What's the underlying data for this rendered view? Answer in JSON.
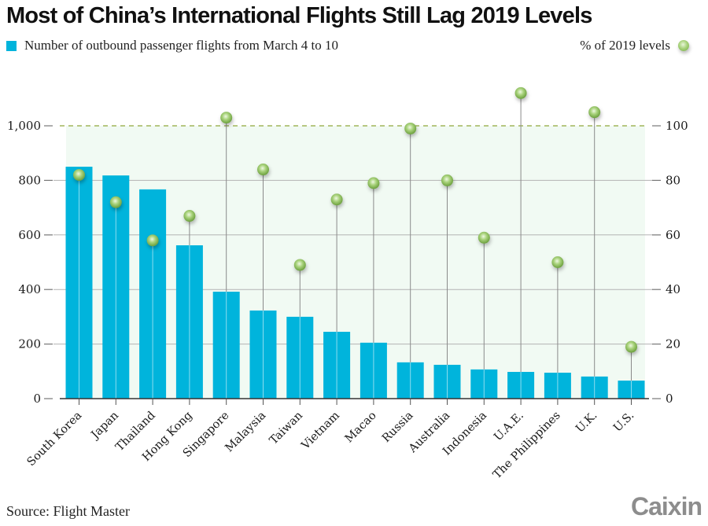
{
  "title": "Most of China’s International Flights Still Lag 2019 Levels",
  "legend": {
    "bars_label": "Number of outbound passenger flights from March 4 to 10",
    "dots_label": "% of 2019 levels"
  },
  "source": "Source: Flight Master",
  "logo": "Caixin",
  "colors": {
    "bar": "#00b4dc",
    "plot_bg": "#f1faf3",
    "dot": "#a9d37c",
    "reference_line": "#8fa83a",
    "grid": "#9a9a9a"
  },
  "chart_data": {
    "type": "bar",
    "title": "Most of China’s International Flights Still Lag 2019 Levels",
    "categories": [
      "South Korea",
      "Japan",
      "Thailand",
      "Hong Kong",
      "Singapore",
      "Malaysia",
      "Taiwan",
      "Vietnam",
      "Macao",
      "Russia",
      "Australia",
      "Indonesia",
      "U.A.E.",
      "The Philippines",
      "U.K.",
      "U.S."
    ],
    "series": [
      {
        "name": "Number of outbound passenger flights from March 4 to 10",
        "type": "bar",
        "axis": "left",
        "values": [
          850,
          818,
          767,
          562,
          392,
          323,
          300,
          245,
          205,
          133,
          124,
          107,
          98,
          95,
          81,
          66
        ]
      },
      {
        "name": "% of 2019 levels",
        "type": "dot",
        "axis": "right",
        "values": [
          82,
          72,
          58,
          67,
          103,
          84,
          49,
          73,
          79,
          99,
          80,
          59,
          112,
          50,
          105,
          19
        ]
      }
    ],
    "left_axis": {
      "ylim": [
        0,
        1000
      ],
      "ticks": [
        0,
        200,
        400,
        600,
        800,
        1000
      ],
      "tick_labels": [
        "0",
        "200",
        "400",
        "600",
        "800",
        "1,000"
      ]
    },
    "right_axis": {
      "ylim": [
        0,
        100
      ],
      "ticks": [
        0,
        20,
        40,
        60,
        80,
        100
      ],
      "tick_labels": [
        "0",
        "20",
        "40",
        "60",
        "80",
        "100"
      ]
    },
    "reference_line": {
      "axis": "right",
      "value": 100,
      "style": "dashed"
    },
    "grid": true,
    "legend_placement": "top",
    "xlabel": "",
    "ylabel": ""
  }
}
